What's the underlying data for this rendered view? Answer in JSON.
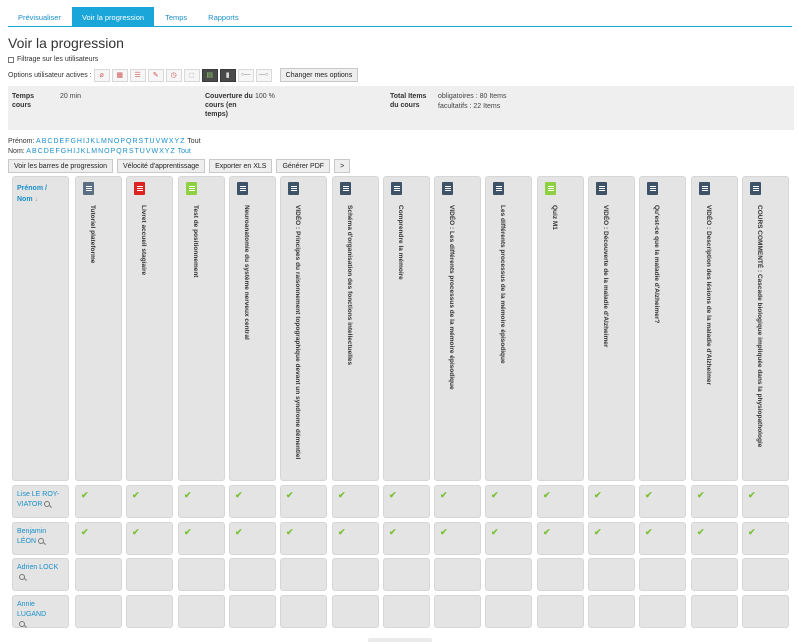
{
  "tabs": [
    {
      "label": "Prévisualiser",
      "active": false
    },
    {
      "label": "Voir la progression",
      "active": true
    },
    {
      "label": "Temps",
      "active": false
    },
    {
      "label": "Rapports",
      "active": false
    }
  ],
  "page_title": "Voir la progression",
  "filter_label": "Filtrage sur les utilisateurs",
  "options": {
    "label": "Options utilisateur actives :",
    "icons": [
      "no-ajax-icon",
      "grid-icon",
      "list-icon",
      "edit-icon",
      "clock-icon",
      "square-icon",
      "table-icon",
      "tool-icon",
      "toggle-icon",
      "toggle-icon"
    ],
    "change_button": "Changer mes options"
  },
  "summary": {
    "temps_label": "Temps cours",
    "temps_value": "20 min",
    "couverture_label": "Couverture du cours (en temps)",
    "couverture_value": "100 %",
    "total_label": "Total Items du cours",
    "total_obligatoires": "obligatoires : 80 Items",
    "total_facultatifs": "facultatifs : 22 Items"
  },
  "alpha": {
    "prenom_label": "Prénom:",
    "nom_label": "Nom:",
    "letters": [
      "A",
      "B",
      "C",
      "D",
      "E",
      "F",
      "G",
      "H",
      "I",
      "J",
      "K",
      "L",
      "M",
      "N",
      "O",
      "P",
      "Q",
      "R",
      "S",
      "T",
      "U",
      "V",
      "W",
      "X",
      "Y",
      "Z"
    ],
    "all_label": "Tout"
  },
  "actions": {
    "barres": "Voir les barres de progression",
    "velocite": "Vélocité d'apprentissage",
    "export": "Exporter en XLS",
    "pdf": "Générer PDF",
    "next": ">"
  },
  "grid": {
    "prenom_header": "Prénom /",
    "nom_header": "Nom",
    "columns": [
      {
        "icon": "book",
        "title": "Tutoriel plateforme"
      },
      {
        "icon": "pdf",
        "title": "Livret accueil stagiaire"
      },
      {
        "icon": "quiz",
        "title": "Test de positionnement"
      },
      {
        "icon": "doc",
        "title": "Neuroanatomie du système nerveux central"
      },
      {
        "icon": "doc",
        "title": "VIDÉO : Principes du raisonnement topographique devant un syndrome démentiel"
      },
      {
        "icon": "doc",
        "title": "Schéma d'organisation des fonctions intellectuelles"
      },
      {
        "icon": "doc",
        "title": "Comprendre la mémoire"
      },
      {
        "icon": "doc",
        "title": "VIDÉO : Les différents processus de la mémoire épisodique"
      },
      {
        "icon": "doc",
        "title": "Les différents processus de la mémoire épisodique"
      },
      {
        "icon": "quiz",
        "title": "Quiz M1"
      },
      {
        "icon": "doc",
        "title": "VIDÉO : Découverte de la maladie d'Alzheimer"
      },
      {
        "icon": "doc",
        "title": "Qu'est-ce que la maladie d'Alzheimer?"
      },
      {
        "icon": "doc",
        "title": "VIDÉO : Description des lésions de la maladie d'Alzheimer"
      },
      {
        "icon": "doc",
        "title": "COURS COMMENTÉ : Cascade biologique impliquée dans la physiopathologie"
      }
    ],
    "rows": [
      {
        "name_line1": "Lise LE ROY-",
        "name_line2": "VIATOR",
        "checks": [
          true,
          true,
          true,
          true,
          true,
          true,
          true,
          true,
          true,
          true,
          true,
          true,
          true,
          true
        ]
      },
      {
        "name_line1": "Benjamin",
        "name_line2": "LÉON",
        "checks": [
          true,
          true,
          true,
          true,
          true,
          true,
          true,
          true,
          true,
          true,
          true,
          true,
          true,
          true
        ]
      },
      {
        "name_line1": "Adrien LOCK",
        "name_line2": "",
        "checks": [
          false,
          false,
          false,
          false,
          false,
          false,
          false,
          false,
          false,
          false,
          false,
          false,
          false,
          false
        ]
      },
      {
        "name_line1": "Annie LUGAND",
        "name_line2": "",
        "checks": [
          false,
          false,
          false,
          false,
          false,
          false,
          false,
          false,
          false,
          false,
          false,
          false,
          false,
          false
        ]
      }
    ],
    "check_glyph": "✔"
  }
}
